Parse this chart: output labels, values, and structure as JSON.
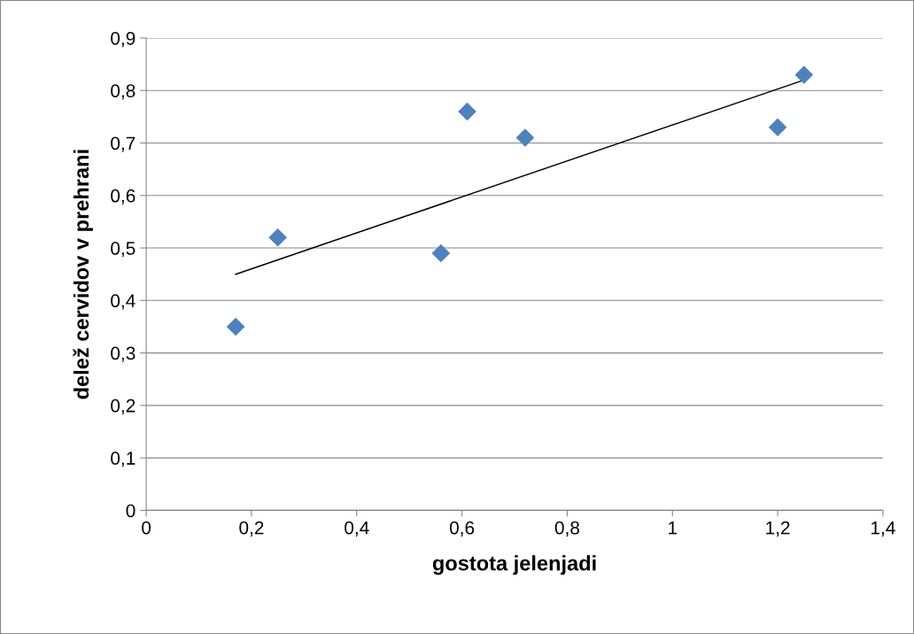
{
  "chart_data": {
    "type": "scatter",
    "xlabel": "gostota jelenjadi",
    "ylabel": "delež cervidov v prehrani",
    "xlim": [
      0,
      1.4
    ],
    "xticks": [
      0,
      {
        "value": 0.2,
        "label": "0,2"
      },
      {
        "value": 0.4,
        "label": "0,4"
      },
      {
        "value": 0.6,
        "label": "0,6"
      },
      {
        "value": 0.8,
        "label": "0,8"
      },
      1,
      {
        "value": 1.2,
        "label": "1,2"
      },
      {
        "value": 1.4,
        "label": "1,4"
      }
    ],
    "ylim": [
      0,
      0.9
    ],
    "yticks": [
      0,
      {
        "value": 0.1,
        "label": "0,1"
      },
      {
        "value": 0.2,
        "label": "0,2"
      },
      {
        "value": 0.3,
        "label": "0,3"
      },
      {
        "value": 0.4,
        "label": "0,4"
      },
      {
        "value": 0.5,
        "label": "0,5"
      },
      {
        "value": 0.6,
        "label": "0,6"
      },
      {
        "value": 0.7,
        "label": "0,7"
      },
      {
        "value": 0.8,
        "label": "0,8"
      },
      {
        "value": 0.9,
        "label": "0,9"
      }
    ],
    "grid": "y",
    "series": [
      {
        "color": "#4f81bd",
        "marker": "diamond",
        "x": [
          0.17,
          0.25,
          0.56,
          0.61,
          0.72,
          1.2,
          1.25
        ],
        "values": [
          0.35,
          0.52,
          0.49,
          0.76,
          0.71,
          0.73,
          0.83
        ]
      },
      {
        "type": "line",
        "color": "#000000",
        "marker": "none",
        "line_style": "solid",
        "x": [
          0.17,
          1.25
        ],
        "values": [
          0.45,
          0.82
        ]
      }
    ]
  }
}
